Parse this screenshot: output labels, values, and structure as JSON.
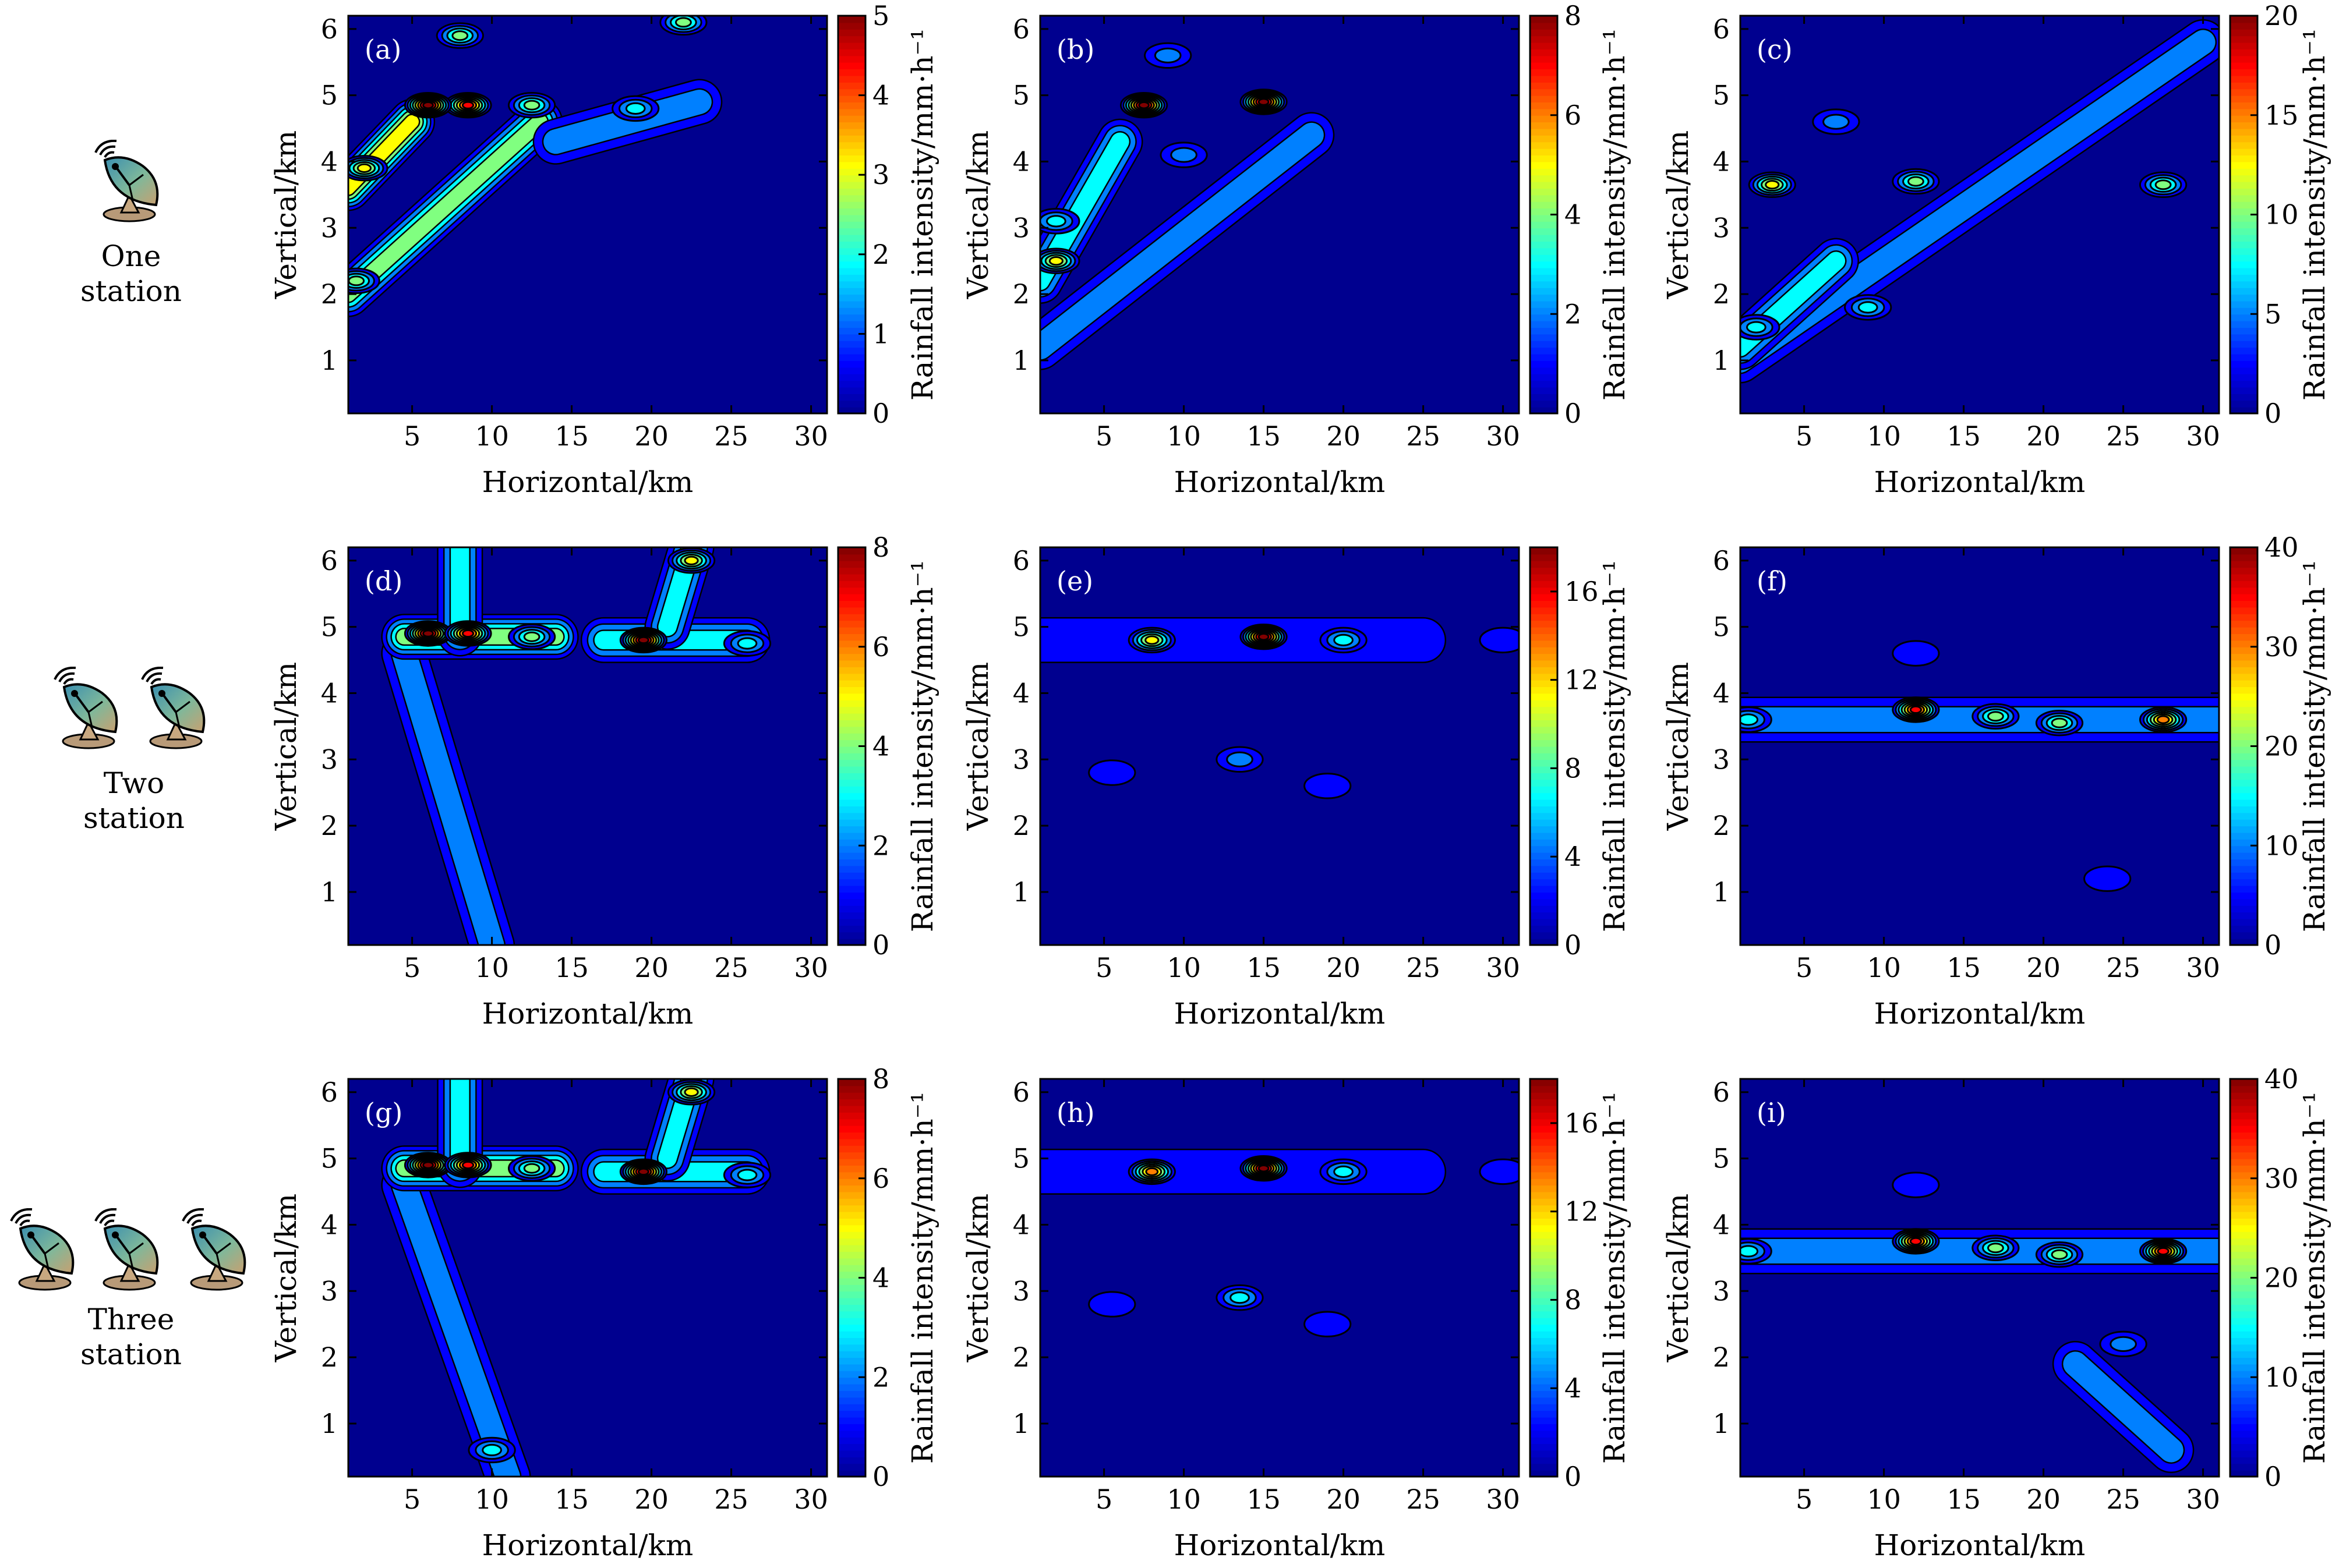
{
  "rows": [
    {
      "label_line1": "One",
      "label_line2": "station",
      "stations": 1
    },
    {
      "label_line1": "Two",
      "label_line2": "station",
      "stations": 2
    },
    {
      "label_line1": "Three",
      "label_line2": "station",
      "stations": 3
    }
  ],
  "colors": {
    "frame": "#000000",
    "contour": "#000000",
    "background_field": "#00008f"
  },
  "colormap": [
    "#00008f",
    "#0000ff",
    "#0080ff",
    "#00ffff",
    "#80ff80",
    "#ffff00",
    "#ff8000",
    "#ff0000",
    "#800000"
  ],
  "icon": "radar-dish-icon",
  "chart_data": [
    {
      "type": "heatmap",
      "panel_label": "(a)",
      "xlabel": "Horizontal/km",
      "ylabel": "Vertical/km",
      "xticks": [
        5,
        10,
        15,
        20,
        25,
        30
      ],
      "yticks": [
        1,
        2,
        3,
        4,
        5,
        6
      ],
      "xlim": [
        1,
        31
      ],
      "ylim": [
        0.2,
        6.2
      ],
      "colorbar": {
        "label": "Rainfall intensity/mm·h⁻¹",
        "ticks": [
          0,
          1,
          2,
          3,
          4,
          5
        ],
        "range": [
          0,
          5
        ]
      },
      "features": [
        {
          "kind": "band",
          "from": [
            1,
            2.0
          ],
          "to": [
            13,
            4.6
          ],
          "peak": 2.5
        },
        {
          "kind": "band",
          "from": [
            1,
            3.6
          ],
          "to": [
            5,
            4.6
          ],
          "peak": 3.2
        },
        {
          "kind": "band",
          "from": [
            14,
            4.3
          ],
          "to": [
            23,
            4.9
          ],
          "peak": 1.4
        },
        {
          "kind": "cell",
          "x": 8.5,
          "y": 4.85,
          "value": 4.5
        },
        {
          "kind": "cell",
          "x": 6,
          "y": 4.85,
          "value": 4.8
        },
        {
          "kind": "cell",
          "x": 12.5,
          "y": 4.85,
          "value": 2.8
        },
        {
          "kind": "cell",
          "x": 8,
          "y": 5.9,
          "value": 2.8
        },
        {
          "kind": "cell",
          "x": 22,
          "y": 6.1,
          "value": 2.2
        },
        {
          "kind": "cell",
          "x": 19,
          "y": 4.8,
          "value": 1.8
        },
        {
          "kind": "cell",
          "x": 1.5,
          "y": 2.2,
          "value": 2.6
        },
        {
          "kind": "cell",
          "x": 2,
          "y": 3.9,
          "value": 3.0
        }
      ]
    },
    {
      "type": "heatmap",
      "panel_label": "(b)",
      "xlabel": "Horizontal/km",
      "ylabel": "Vertical/km",
      "xticks": [
        5,
        10,
        15,
        20,
        25,
        30
      ],
      "yticks": [
        1,
        2,
        3,
        4,
        5,
        6
      ],
      "xlim": [
        1,
        31
      ],
      "ylim": [
        0.2,
        6.2
      ],
      "colorbar": {
        "label": "Rainfall intensity/mm·h⁻¹",
        "ticks": [
          0,
          2,
          4,
          6,
          8
        ],
        "range": [
          0,
          8
        ]
      },
      "features": [
        {
          "kind": "band",
          "from": [
            1,
            1.2
          ],
          "to": [
            18,
            4.4
          ],
          "peak": 1.8
        },
        {
          "kind": "band",
          "from": [
            1,
            2.2
          ],
          "to": [
            6,
            4.3
          ],
          "peak": 2.6
        },
        {
          "kind": "cell",
          "x": 7.5,
          "y": 4.85,
          "value": 7.5
        },
        {
          "kind": "cell",
          "x": 15,
          "y": 4.9,
          "value": 7.6
        },
        {
          "kind": "cell",
          "x": 2,
          "y": 2.5,
          "value": 4.6
        },
        {
          "kind": "cell",
          "x": 2,
          "y": 3.1,
          "value": 3.2
        },
        {
          "kind": "cell",
          "x": 10,
          "y": 4.1,
          "value": 2.2
        },
        {
          "kind": "cell",
          "x": 9,
          "y": 5.6,
          "value": 1.5
        }
      ]
    },
    {
      "type": "heatmap",
      "panel_label": "(c)",
      "xlabel": "Horizontal/km",
      "ylabel": "Vertical/km",
      "xticks": [
        5,
        10,
        15,
        20,
        25,
        30
      ],
      "yticks": [
        1,
        2,
        3,
        4,
        5,
        6
      ],
      "xlim": [
        1,
        31
      ],
      "ylim": [
        0.2,
        6.2
      ],
      "colorbar": {
        "label": "Rainfall intensity/mm·h⁻¹",
        "ticks": [
          0,
          5,
          10,
          15,
          20
        ],
        "range": [
          0,
          20
        ]
      },
      "features": [
        {
          "kind": "band",
          "from": [
            1,
            1.0
          ],
          "to": [
            30,
            5.8
          ],
          "peak": 4.0
        },
        {
          "kind": "band",
          "from": [
            1,
            1.2
          ],
          "to": [
            7,
            2.5
          ],
          "peak": 7.0
        },
        {
          "kind": "cell",
          "x": 3,
          "y": 3.65,
          "value": 12.0
        },
        {
          "kind": "cell",
          "x": 12,
          "y": 3.7,
          "value": 9.0
        },
        {
          "kind": "cell",
          "x": 27.5,
          "y": 3.65,
          "value": 10.0
        },
        {
          "kind": "cell",
          "x": 9,
          "y": 1.8,
          "value": 8.0
        },
        {
          "kind": "cell",
          "x": 2,
          "y": 1.5,
          "value": 8.5
        },
        {
          "kind": "cell",
          "x": 7,
          "y": 4.6,
          "value": 5.0
        }
      ]
    },
    {
      "type": "heatmap",
      "panel_label": "(d)",
      "xlabel": "Horizontal/km",
      "ylabel": "Vertical/km",
      "xticks": [
        5,
        10,
        15,
        20,
        25,
        30
      ],
      "yticks": [
        1,
        2,
        3,
        4,
        5,
        6
      ],
      "xlim": [
        1,
        31
      ],
      "ylim": [
        0.2,
        6.2
      ],
      "colorbar": {
        "label": "Rainfall intensity/mm·h⁻¹",
        "ticks": [
          0,
          2,
          4,
          6,
          8
        ],
        "range": [
          0,
          8
        ]
      },
      "features": [
        {
          "kind": "band",
          "from": [
            10,
            0.2
          ],
          "to": [
            4.5,
            4.6
          ],
          "peak": 1.6
        },
        {
          "kind": "band",
          "from": [
            4.5,
            4.85
          ],
          "to": [
            14,
            4.85
          ],
          "peak": 3.5
        },
        {
          "kind": "band",
          "from": [
            8,
            4.9
          ],
          "to": [
            8,
            6.2
          ],
          "peak": 2.5
        },
        {
          "kind": "band",
          "from": [
            17,
            4.8
          ],
          "to": [
            26,
            4.8
          ],
          "peak": 2.5
        },
        {
          "kind": "band",
          "from": [
            21,
            5.0
          ],
          "to": [
            22.5,
            6.2
          ],
          "peak": 3.2
        },
        {
          "kind": "cell",
          "x": 6,
          "y": 4.9,
          "value": 7.5
        },
        {
          "kind": "cell",
          "x": 8.5,
          "y": 4.9,
          "value": 6.8
        },
        {
          "kind": "cell",
          "x": 19.5,
          "y": 4.8,
          "value": 7.5
        },
        {
          "kind": "cell",
          "x": 22.5,
          "y": 6.0,
          "value": 5.0
        },
        {
          "kind": "cell",
          "x": 12.5,
          "y": 4.85,
          "value": 4.0
        },
        {
          "kind": "cell",
          "x": 26,
          "y": 4.75,
          "value": 2.5
        }
      ]
    },
    {
      "type": "heatmap",
      "panel_label": "(e)",
      "xlabel": "Horizontal/km",
      "ylabel": "Vertical/km",
      "xticks": [
        5,
        10,
        15,
        20,
        25,
        30
      ],
      "yticks": [
        1,
        2,
        3,
        4,
        5,
        6
      ],
      "xlim": [
        1,
        31
      ],
      "ylim": [
        0.2,
        6.2
      ],
      "colorbar": {
        "label": "Rainfall intensity/mm·h⁻¹",
        "ticks": [
          0,
          4,
          8,
          12,
          16
        ],
        "range": [
          0,
          18
        ]
      },
      "features": [
        {
          "kind": "band",
          "from": [
            1,
            4.8
          ],
          "to": [
            25,
            4.8
          ],
          "peak": 3.0
        },
        {
          "kind": "cell",
          "x": 8,
          "y": 4.8,
          "value": 12.0
        },
        {
          "kind": "cell",
          "x": 15,
          "y": 4.85,
          "value": 17.0
        },
        {
          "kind": "cell",
          "x": 20,
          "y": 4.8,
          "value": 6.0
        },
        {
          "kind": "cell",
          "x": 13.5,
          "y": 3.0,
          "value": 5.5
        },
        {
          "kind": "cell",
          "x": 19,
          "y": 2.6,
          "value": 3.0
        },
        {
          "kind": "cell",
          "x": 5.5,
          "y": 2.8,
          "value": 2.0
        },
        {
          "kind": "cell",
          "x": 30,
          "y": 4.8,
          "value": 2.0
        }
      ]
    },
    {
      "type": "heatmap",
      "panel_label": "(f)",
      "xlabel": "Horizontal/km",
      "ylabel": "Vertical/km",
      "xticks": [
        5,
        10,
        15,
        20,
        25,
        30
      ],
      "yticks": [
        1,
        2,
        3,
        4,
        5,
        6
      ],
      "xlim": [
        1,
        31
      ],
      "ylim": [
        0.2,
        6.2
      ],
      "colorbar": {
        "label": "Rainfall intensity/mm·h⁻¹",
        "ticks": [
          0,
          10,
          20,
          30,
          40
        ],
        "range": [
          0,
          40
        ]
      },
      "features": [
        {
          "kind": "band",
          "from": [
            1,
            3.6
          ],
          "to": [
            31,
            3.6
          ],
          "peak": 10.0
        },
        {
          "kind": "cell",
          "x": 12,
          "y": 3.75,
          "value": 35.0
        },
        {
          "kind": "cell",
          "x": 27.5,
          "y": 3.6,
          "value": 32.0
        },
        {
          "kind": "cell",
          "x": 1.5,
          "y": 3.6,
          "value": 16.0
        },
        {
          "kind": "cell",
          "x": 17,
          "y": 3.65,
          "value": 18.0
        },
        {
          "kind": "cell",
          "x": 21,
          "y": 3.55,
          "value": 18.0
        },
        {
          "kind": "cell",
          "x": 24,
          "y": 1.2,
          "value": 6.0
        },
        {
          "kind": "cell",
          "x": 12,
          "y": 4.6,
          "value": 6.0
        }
      ]
    },
    {
      "type": "heatmap",
      "panel_label": "(g)",
      "xlabel": "Horizontal/km",
      "ylabel": "Vertical/km",
      "xticks": [
        5,
        10,
        15,
        20,
        25,
        30
      ],
      "yticks": [
        1,
        2,
        3,
        4,
        5,
        6
      ],
      "xlim": [
        1,
        31
      ],
      "ylim": [
        0.2,
        6.2
      ],
      "colorbar": {
        "label": "Rainfall intensity/mm·h⁻¹",
        "ticks": [
          0,
          2,
          4,
          6,
          8
        ],
        "range": [
          0,
          8
        ]
      },
      "features": [
        {
          "kind": "band",
          "from": [
            11,
            0.2
          ],
          "to": [
            4.5,
            4.6
          ],
          "peak": 2.0
        },
        {
          "kind": "band",
          "from": [
            4.5,
            4.85
          ],
          "to": [
            14,
            4.85
          ],
          "peak": 3.5
        },
        {
          "kind": "band",
          "from": [
            8,
            4.9
          ],
          "to": [
            8,
            6.2
          ],
          "peak": 2.8
        },
        {
          "kind": "band",
          "from": [
            17,
            4.8
          ],
          "to": [
            26,
            4.8
          ],
          "peak": 2.5
        },
        {
          "kind": "band",
          "from": [
            21,
            5.0
          ],
          "to": [
            22.5,
            6.2
          ],
          "peak": 3.4
        },
        {
          "kind": "cell",
          "x": 6,
          "y": 4.9,
          "value": 7.6
        },
        {
          "kind": "cell",
          "x": 8.5,
          "y": 4.9,
          "value": 7.0
        },
        {
          "kind": "cell",
          "x": 19.5,
          "y": 4.8,
          "value": 7.5
        },
        {
          "kind": "cell",
          "x": 22.5,
          "y": 6.0,
          "value": 5.2
        },
        {
          "kind": "cell",
          "x": 12.5,
          "y": 4.85,
          "value": 4.0
        },
        {
          "kind": "cell",
          "x": 26,
          "y": 4.75,
          "value": 2.5
        },
        {
          "kind": "cell",
          "x": 10,
          "y": 0.6,
          "value": 3.0
        }
      ]
    },
    {
      "type": "heatmap",
      "panel_label": "(h)",
      "xlabel": "Horizontal/km",
      "ylabel": "Vertical/km",
      "xticks": [
        5,
        10,
        15,
        20,
        25,
        30
      ],
      "yticks": [
        1,
        2,
        3,
        4,
        5,
        6
      ],
      "xlim": [
        1,
        31
      ],
      "ylim": [
        0.2,
        6.2
      ],
      "colorbar": {
        "label": "Rainfall intensity/mm·h⁻¹",
        "ticks": [
          0,
          4,
          8,
          12,
          16
        ],
        "range": [
          0,
          18
        ]
      },
      "features": [
        {
          "kind": "band",
          "from": [
            1,
            4.8
          ],
          "to": [
            25,
            4.8
          ],
          "peak": 3.0
        },
        {
          "kind": "cell",
          "x": 8,
          "y": 4.8,
          "value": 12.5
        },
        {
          "kind": "cell",
          "x": 15,
          "y": 4.85,
          "value": 17.0
        },
        {
          "kind": "cell",
          "x": 20,
          "y": 4.8,
          "value": 6.5
        },
        {
          "kind": "cell",
          "x": 13.5,
          "y": 2.9,
          "value": 6.0
        },
        {
          "kind": "cell",
          "x": 19,
          "y": 2.5,
          "value": 3.0
        },
        {
          "kind": "cell",
          "x": 5.5,
          "y": 2.8,
          "value": 2.0
        },
        {
          "kind": "cell",
          "x": 30,
          "y": 4.8,
          "value": 2.0
        }
      ]
    },
    {
      "type": "heatmap",
      "panel_label": "(i)",
      "xlabel": "Horizontal/km",
      "ylabel": "Vertical/km",
      "xticks": [
        5,
        10,
        15,
        20,
        25,
        30
      ],
      "yticks": [
        1,
        2,
        3,
        4,
        5,
        6
      ],
      "xlim": [
        1,
        31
      ],
      "ylim": [
        0.2,
        6.2
      ],
      "colorbar": {
        "label": "Rainfall intensity/mm·h⁻¹",
        "ticks": [
          0,
          10,
          20,
          30,
          40
        ],
        "range": [
          0,
          40
        ]
      },
      "features": [
        {
          "kind": "band",
          "from": [
            1,
            3.6
          ],
          "to": [
            31,
            3.6
          ],
          "peak": 10.0
        },
        {
          "kind": "band",
          "from": [
            22,
            1.9
          ],
          "to": [
            28,
            0.6
          ],
          "peak": 8.0
        },
        {
          "kind": "cell",
          "x": 12,
          "y": 3.75,
          "value": 35.0
        },
        {
          "kind": "cell",
          "x": 27.5,
          "y": 3.6,
          "value": 34.0
        },
        {
          "kind": "cell",
          "x": 1.5,
          "y": 3.6,
          "value": 17.0
        },
        {
          "kind": "cell",
          "x": 17,
          "y": 3.65,
          "value": 19.0
        },
        {
          "kind": "cell",
          "x": 21,
          "y": 3.55,
          "value": 18.0
        },
        {
          "kind": "cell",
          "x": 25,
          "y": 2.2,
          "value": 8.0
        },
        {
          "kind": "cell",
          "x": 12,
          "y": 4.6,
          "value": 6.0
        }
      ]
    }
  ]
}
